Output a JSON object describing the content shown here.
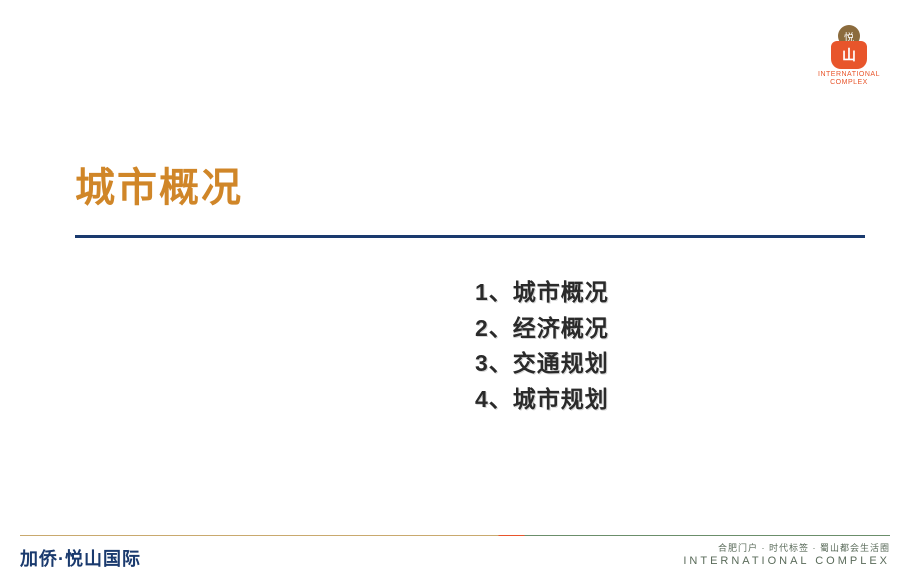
{
  "logo": {
    "char_top": "悦",
    "char_bottom": "山",
    "text_line1": "INTERNATIONAL",
    "text_line2": "COMPLEX"
  },
  "title": "城市概况",
  "list": {
    "items": [
      "1、城市概况",
      "2、经济概况",
      "3、交通规划",
      "4、城市规划"
    ]
  },
  "footer": {
    "left": "加侨·悦山国际",
    "right_top": "合肥门户 · 时代标签 · 蜀山都会生活圈",
    "right_bottom": "INTERNATIONAL COMPLEX"
  },
  "colors": {
    "title": "#d08628",
    "divider": "#1a3a6e",
    "list_text": "#2a2a2a",
    "logo_orange": "#e8552b",
    "logo_brown": "#8b6b3d",
    "footer_left": "#1a3a6e",
    "footer_right": "#5a6b5a"
  }
}
